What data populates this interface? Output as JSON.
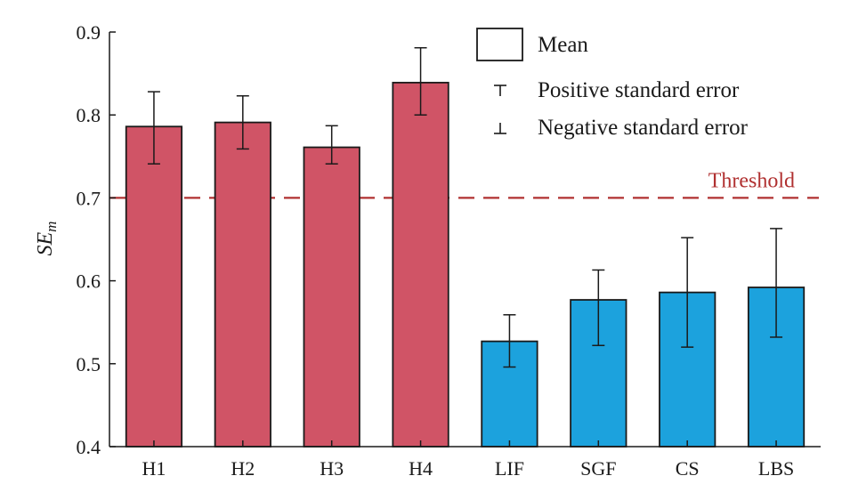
{
  "chart_data": {
    "type": "bar",
    "title": "",
    "xlabel": "",
    "ylabel": {
      "main": "SE",
      "sub": "m"
    },
    "ylim": [
      0.4,
      0.9
    ],
    "yticks": [
      0.4,
      0.5,
      0.6,
      0.7,
      0.8,
      0.9
    ],
    "ytick_labels": [
      "0.4",
      "0.5",
      "0.6",
      "0.7",
      "0.8",
      "0.9"
    ],
    "grid": false,
    "legend_position": "top-right",
    "categories": [
      "H1",
      "H2",
      "H3",
      "H4",
      "LIF",
      "SGF",
      "CS",
      "LBS"
    ],
    "values": [
      0.786,
      0.791,
      0.761,
      0.839,
      0.527,
      0.577,
      0.586,
      0.592
    ],
    "error_upper": [
      0.828,
      0.823,
      0.787,
      0.881,
      0.559,
      0.613,
      0.652,
      0.663
    ],
    "error_lower": [
      0.741,
      0.759,
      0.741,
      0.8,
      0.496,
      0.522,
      0.52,
      0.532
    ],
    "bar_colors": [
      "#d05466",
      "#d05466",
      "#d05466",
      "#d05466",
      "#1ca2dd",
      "#1ca2dd",
      "#1ca2dd",
      "#1ca2dd"
    ],
    "threshold": {
      "value": 0.7,
      "label": "Threshold",
      "color": "#b03030"
    },
    "legend": {
      "mean": "Mean",
      "positive": "Positive standard error",
      "negative": "Negative standard error"
    }
  }
}
